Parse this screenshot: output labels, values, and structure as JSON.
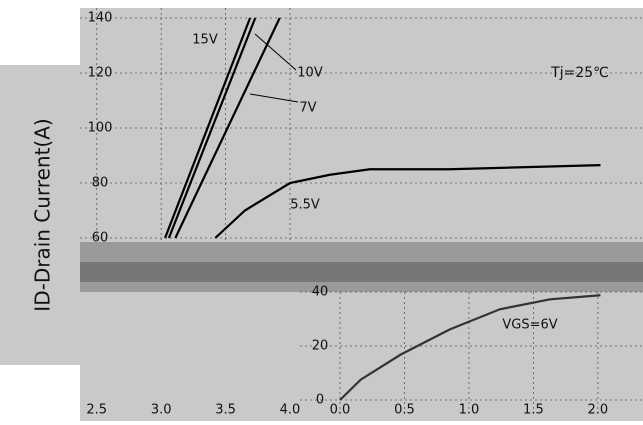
{
  "chart_data": [
    {
      "type": "line",
      "y_label": "ID-Drain Current(A)",
      "annotation": "Tj=25℃",
      "xlim": [
        2.37,
        6.74
      ],
      "ylim": [
        60,
        140
      ],
      "xticks": [
        2.5,
        {
          "value": 3.0,
          "label": "3.0"
        },
        3.5,
        {
          "value": 4.0,
          "label": "4.0"
        }
      ],
      "yticks": [
        60,
        80,
        100,
        120,
        140
      ],
      "grid": true,
      "series": [
        {
          "name": "15V",
          "color": "#000000",
          "x": [
            3.03,
            3.69
          ],
          "values": [
            60,
            140
          ]
        },
        {
          "name": "10V",
          "color": "#000000",
          "x": [
            3.06,
            3.73
          ],
          "values": [
            60,
            140
          ]
        },
        {
          "name": "7V",
          "color": "#000000",
          "x": [
            3.11,
            3.92
          ],
          "values": [
            60,
            140
          ]
        },
        {
          "name": "5.5V",
          "color": "#000000",
          "x": [
            3.42,
            3.65,
            4.0,
            4.31,
            4.62,
            5.24,
            6.41
          ],
          "values": [
            60,
            70,
            80,
            83,
            85,
            85,
            86.5
          ]
        }
      ]
    },
    {
      "type": "line",
      "xlim": [
        0,
        2.35
      ],
      "ylim": [
        0,
        40
      ],
      "xticks": [
        {
          "value": 0,
          "label": "0.0"
        },
        0.5,
        {
          "value": 1,
          "label": "1.0"
        },
        1.5,
        {
          "value": 2,
          "label": "2.0"
        }
      ],
      "yticks": [
        0,
        20,
        40
      ],
      "grid": true,
      "series": [
        {
          "name": "VGS=6V",
          "color": "#333333",
          "x": [
            0,
            0.16,
            0.47,
            0.85,
            1.24,
            1.63,
            2.02
          ],
          "values": [
            0,
            7.5,
            16.8,
            26.1,
            33.6,
            37.3,
            38.8
          ]
        }
      ]
    }
  ]
}
